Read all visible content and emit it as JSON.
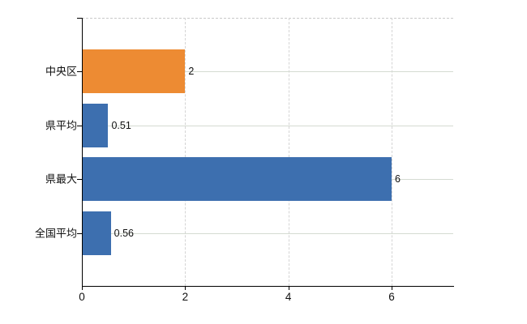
{
  "chart_data": {
    "type": "bar",
    "orientation": "horizontal",
    "title": "",
    "categories": [
      "中央区",
      "県平均",
      "県最大",
      "全国平均"
    ],
    "values": [
      2,
      0.51,
      6,
      0.56
    ],
    "value_labels": [
      "2",
      "0.51",
      "6",
      "0.56"
    ],
    "series_colors": [
      "#ED8B33",
      "#3D6FAF",
      "#3D6FAF",
      "#3D6FAF"
    ],
    "highlight_category": "中央区",
    "x_ticks": [
      0,
      2,
      4,
      6
    ],
    "x_tick_labels": [
      "0",
      "2",
      "4",
      "6"
    ],
    "xlim": [
      0,
      7.2
    ],
    "grid": "on",
    "legend": "none",
    "colors": {
      "bar_orange": "#ED8B33",
      "bar_blue": "#3D6FAF",
      "axis": "#000000",
      "gridline_horizontal": "#d5dbd2",
      "gridline_vertical_dashed": "#d4d4d4",
      "plot_top_border_dashed": "#c9c9c9",
      "text": "#111111"
    }
  }
}
